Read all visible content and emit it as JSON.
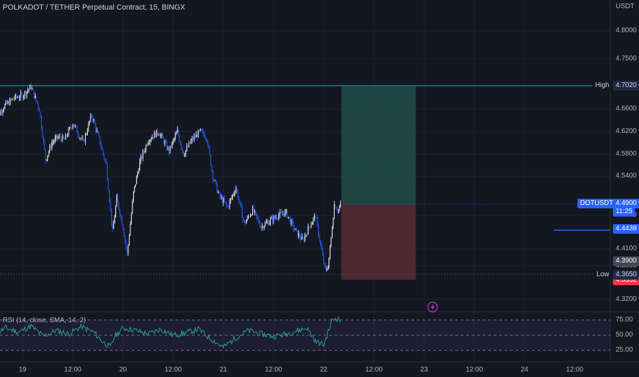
{
  "header": {
    "title": "POLKADOT / TETHER Perpetual Contract, 15, BINGX"
  },
  "axis": {
    "currency": "USDT"
  },
  "price_axis": {
    "ticks": [
      "4.8000",
      "4.7500",
      "4.6600",
      "4.6200",
      "4.5800",
      "4.5400",
      "4.4700",
      "4.4100",
      "4.3800",
      "4.3200"
    ]
  },
  "time_axis": {
    "ticks": [
      "19",
      "12:00",
      "20",
      "12:00",
      "21",
      "12:00",
      "22",
      "12:00",
      "23",
      "12:00",
      "24",
      "12:00"
    ]
  },
  "labels": {
    "high_text": "High",
    "high_value": "4.7020",
    "low_text": "Low",
    "low_value": "4.3650",
    "symbol": "DOTUSDT",
    "last_price": "4.4900",
    "countdown": "11:25",
    "target_price": "4.4438",
    "gray_price": "4.3900",
    "stop_price": "4.3552"
  },
  "rsi": {
    "label": "RSI (14, close, SMA, 14, 2)",
    "ticks": [
      "75.00",
      "50.00",
      "25.00"
    ]
  },
  "colors": {
    "background": "#131722",
    "candle_up": "#ffffff",
    "candle_down": "#2962ff",
    "accent": "#2962ff",
    "rsi_line": "#26a69a",
    "reward_zone": "#1e4d4a",
    "risk_zone": "#5a2a33",
    "stop_label": "#f23645",
    "alert_icon": "#c039d6"
  },
  "icons": {
    "alert": "lightning-icon"
  },
  "chart_data": {
    "type": "candlestick",
    "title": "POLKADOT / TETHER Perpetual Contract, 15, BINGX",
    "x_axis": {
      "type": "time",
      "ticks": [
        "19",
        "12:00",
        "20",
        "12:00",
        "21",
        "12:00",
        "22",
        "12:00",
        "23",
        "12:00",
        "24",
        "12:00"
      ]
    },
    "y_axis": {
      "unit": "USDT",
      "range": [
        4.3,
        4.84
      ]
    },
    "price_path": {
      "description_type": "close_series_estimated",
      "x_hours_from_day19": [
        -7,
        -4.5,
        -2,
        0,
        2,
        4,
        5.5,
        7,
        8.5,
        10,
        12,
        14.5,
        16.5,
        18.5,
        20,
        21.5,
        22.5,
        24,
        25,
        26.5,
        28,
        30,
        32.5,
        35,
        37,
        38.5,
        40.5,
        42.5,
        44,
        45.5,
        47,
        49,
        51,
        53,
        55,
        57,
        59,
        61,
        63,
        65,
        67,
        68.5,
        70,
        72,
        72.5,
        73,
        73.5,
        74.5,
        75.5,
        76.2
      ],
      "close": [
        4.635,
        4.665,
        4.68,
        4.685,
        4.7,
        4.66,
        4.57,
        4.6,
        4.61,
        4.605,
        4.635,
        4.6,
        4.65,
        4.6,
        4.56,
        4.44,
        4.5,
        4.45,
        4.4,
        4.51,
        4.565,
        4.605,
        4.62,
        4.585,
        4.62,
        4.58,
        4.605,
        4.62,
        4.61,
        4.54,
        4.505,
        4.485,
        4.52,
        4.455,
        4.48,
        4.45,
        4.46,
        4.47,
        4.475,
        4.445,
        4.425,
        4.45,
        4.47,
        4.385,
        4.37,
        4.38,
        4.41,
        4.49,
        4.48,
        4.49
      ]
    },
    "annotations": {
      "high": 4.702,
      "low": 4.365,
      "last": 4.49,
      "target_line": 4.4438,
      "gray_level": 4.39,
      "stop": 4.3552
    },
    "position": {
      "entry": 4.49,
      "take_profit": 4.702,
      "stop_loss": 4.3552,
      "start_hours": 76.2,
      "end_hours": 94
    },
    "rsi": {
      "name": "RSI (14, close, SMA, 14, 2)",
      "levels": [
        75,
        50,
        25
      ],
      "range": [
        15,
        85
      ],
      "x_hours_from_day19": [
        -7,
        -4,
        -1,
        2,
        5,
        8,
        11,
        14,
        17,
        19,
        21,
        22,
        24,
        27,
        30,
        33,
        36,
        39,
        42,
        45,
        48,
        51,
        54,
        57,
        60,
        63,
        66,
        68,
        70,
        72,
        73,
        74,
        75,
        76.2
      ],
      "values": [
        50,
        62,
        55,
        65,
        48,
        58,
        52,
        64,
        55,
        40,
        30,
        48,
        62,
        58,
        52,
        60,
        50,
        54,
        60,
        44,
        30,
        46,
        58,
        52,
        48,
        52,
        58,
        62,
        40,
        34,
        55,
        74,
        79,
        72
      ]
    }
  }
}
